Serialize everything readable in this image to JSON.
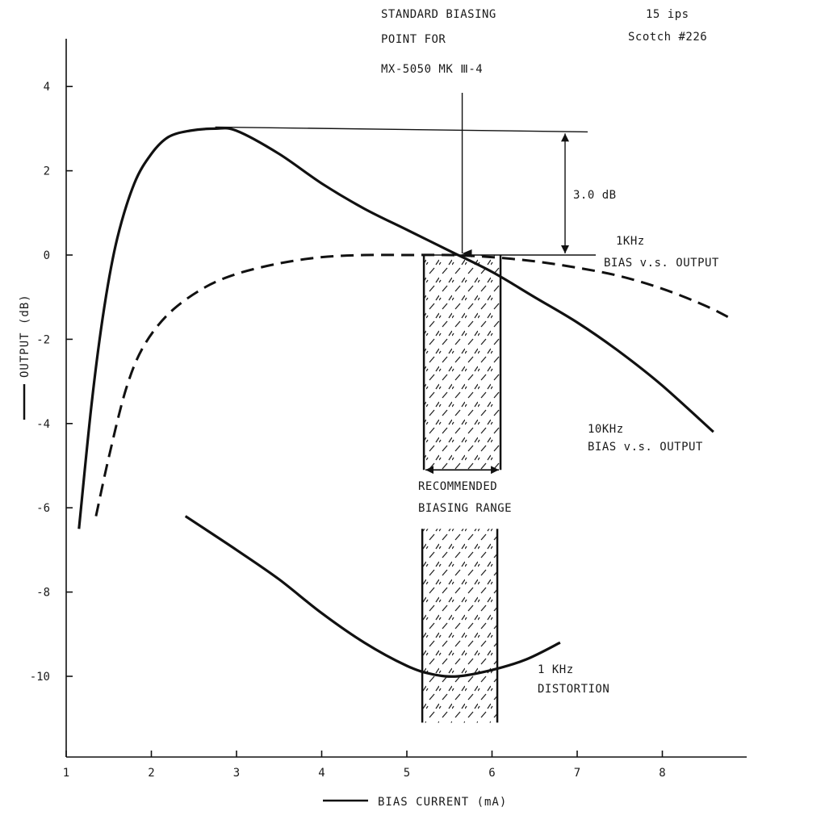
{
  "chart_data": {
    "type": "line",
    "xlabel": "BIAS CURRENT (mA)",
    "ylabel": "OUTPUT (dB)",
    "xlim": [
      1,
      9
    ],
    "ylim": [
      -11.5,
      5
    ],
    "x_ticks": [
      "1",
      "2",
      "3",
      "4",
      "5",
      "6",
      "7",
      "8"
    ],
    "y_ticks": [
      "4",
      "2",
      "0",
      "-2",
      "-4",
      "-6",
      "-8",
      "-10"
    ],
    "series": [
      {
        "name": "10KHz BIAS v.s. OUTPUT",
        "style": "solid",
        "x": [
          1.15,
          1.3,
          1.45,
          1.6,
          1.8,
          2.0,
          2.2,
          2.45,
          2.75,
          3.0,
          3.5,
          4.0,
          4.5,
          5.0,
          5.5,
          6.0,
          6.5,
          7.0,
          7.5,
          8.0,
          8.6
        ],
        "y": [
          -6.5,
          -3.5,
          -1.2,
          0.4,
          1.7,
          2.4,
          2.8,
          2.95,
          3.0,
          2.95,
          2.4,
          1.7,
          1.1,
          0.6,
          0.1,
          -0.4,
          -1.0,
          -1.6,
          -2.3,
          -3.1,
          -4.2
        ]
      },
      {
        "name": "1KHz BIAS v.s. OUTPUT",
        "style": "dashed",
        "x": [
          1.35,
          1.5,
          1.7,
          1.9,
          2.2,
          2.6,
          3.0,
          3.5,
          4.0,
          4.5,
          5.0,
          5.5,
          6.0,
          6.5,
          7.0,
          7.5,
          8.0,
          8.5,
          8.8
        ],
        "y": [
          -6.2,
          -4.8,
          -3.2,
          -2.2,
          -1.4,
          -0.8,
          -0.45,
          -0.2,
          -0.05,
          0.0,
          0.0,
          0.0,
          -0.05,
          -0.15,
          -0.3,
          -0.5,
          -0.8,
          -1.2,
          -1.5
        ]
      },
      {
        "name": "1 KHz DISTORTION",
        "style": "solid",
        "x": [
          2.4,
          3.0,
          3.5,
          4.0,
          4.5,
          5.0,
          5.3,
          5.6,
          6.0,
          6.4,
          6.8
        ],
        "y": [
          -6.2,
          -7.0,
          -7.7,
          -8.5,
          -9.2,
          -9.75,
          -9.95,
          -10.0,
          -9.85,
          -9.6,
          -9.2
        ]
      }
    ],
    "recommended_range_x": [
      5.2,
      6.1
    ],
    "standard_bias_point_x": 5.65,
    "bracket_top_y": 3.0,
    "bracket_bottom_y": 0.0,
    "annotations": {
      "standard_line1": "STANDARD BIASING",
      "standard_line2": "POINT FOR",
      "standard_line3": "MX-5050 MK Ⅲ-4",
      "speed": "15 ips",
      "tape": "Scotch #226",
      "delta": "3.0 dB",
      "label_1khz_line1": "1KHz",
      "label_1khz_line2": "BIAS v.s. OUTPUT",
      "label_10khz_line1": "10KHz",
      "label_10khz_line2": "BIAS v.s. OUTPUT",
      "range_line1": "RECOMMENDED",
      "range_line2": "BIASING RANGE",
      "dist_line1": "1 KHz",
      "dist_line2": "DISTORTION"
    },
    "grid": false
  }
}
